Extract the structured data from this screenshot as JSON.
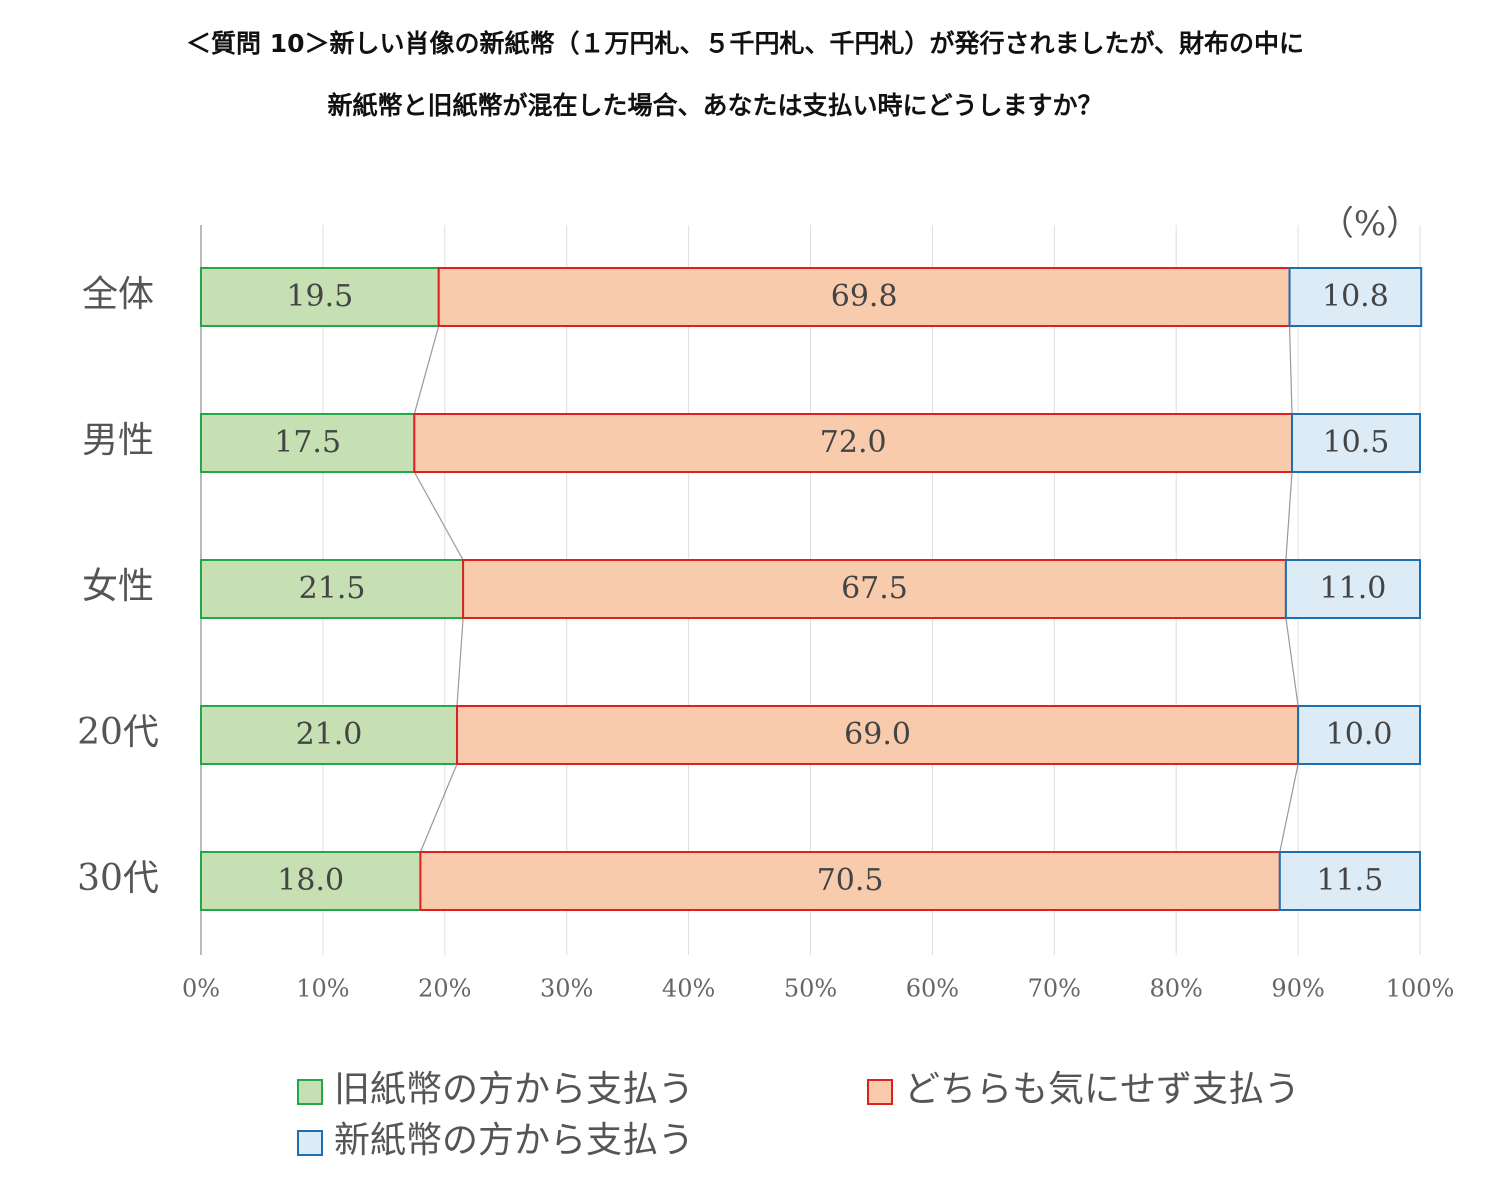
{
  "chart_data": {
    "type": "stacked-bar-horizontal",
    "title": [
      "＜質問 10＞新しい肖像の新紙幣（１万円札、５千円札、千円札）が発行されましたが、財布の中に",
      "新紙幣と旧紙幣が混在した場合、あなたは支払い時にどうしますか？"
    ],
    "unit_label": "（%）",
    "categories": [
      "全体",
      "男性",
      "女性",
      "20代",
      "30代"
    ],
    "series": [
      {
        "name": "旧紙幣の方から支払う",
        "color": "#c6e0b4",
        "edge_color": "#22a84a",
        "values": [
          19.5,
          17.5,
          21.5,
          21.0,
          18.0
        ],
        "value_labels": [
          "19.5",
          "17.5",
          "21.5",
          "21.0",
          "18.0"
        ]
      },
      {
        "name": "どちらも気にせず支払う",
        "color": "#f8cbad",
        "edge_color": "#e02020",
        "values": [
          69.8,
          72.0,
          67.5,
          69.0,
          70.5
        ],
        "value_labels": [
          "69.8",
          "72.0",
          "67.5",
          "69.0",
          "70.5"
        ]
      },
      {
        "name": "新紙幣の方から支払う",
        "color": "#ddebf7",
        "edge_color": "#1f6fb0",
        "values": [
          10.8,
          10.5,
          11.0,
          10.0,
          11.5
        ],
        "value_labels": [
          "10.8",
          "10.5",
          "11.0",
          "10.0",
          "11.5"
        ]
      }
    ],
    "xlim": [
      0,
      100
    ],
    "xticks": [
      {
        "value": 0,
        "label": "0%"
      },
      {
        "value": 10,
        "label": "10%"
      },
      {
        "value": 20,
        "label": "20%"
      },
      {
        "value": 30,
        "label": "30%"
      },
      {
        "value": 40,
        "label": "40%"
      },
      {
        "value": 50,
        "label": "50%"
      },
      {
        "value": 60,
        "label": "60%"
      },
      {
        "value": 70,
        "label": "70%"
      },
      {
        "value": 80,
        "label": "80%"
      },
      {
        "value": 90,
        "label": "90%"
      },
      {
        "value": 100,
        "label": "100%"
      }
    ],
    "grid": true,
    "series_lines": true,
    "legend": "bottom"
  }
}
